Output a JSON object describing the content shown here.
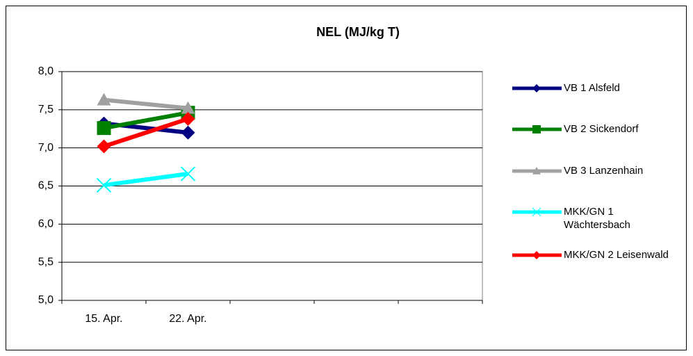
{
  "chart_data": {
    "type": "line",
    "title": "NEL (MJ/kg T)",
    "categories": [
      "15. Apr.",
      "22. Apr.",
      null,
      null,
      null
    ],
    "ylim": [
      5,
      8
    ],
    "yticks": [
      {
        "value": 5,
        "label": "5,0"
      },
      {
        "value": 5.5,
        "label": "5,5"
      },
      {
        "value": 6,
        "label": "6,0"
      },
      {
        "value": 6.5,
        "label": "6,5"
      },
      {
        "value": 7,
        "label": "7,0"
      },
      {
        "value": 7.5,
        "label": "7,5"
      },
      {
        "value": 8,
        "label": "8,0"
      }
    ],
    "grid": true,
    "legend": "right",
    "series": [
      {
        "name": "VB 1 Alsfeld",
        "color": "#000080",
        "marker": "diamond",
        "values": [
          7.32,
          7.2,
          null,
          null,
          null
        ]
      },
      {
        "name": "VB 2 Sickendorf",
        "color": "#008000",
        "marker": "square",
        "values": [
          7.26,
          7.46,
          null,
          null,
          null
        ]
      },
      {
        "name": "VB 3 Lanzenhain",
        "color": "#a0a0a0",
        "marker": "triangle",
        "values": [
          7.63,
          7.52,
          null,
          null,
          null
        ]
      },
      {
        "name": "MKK/GN 1 Wächtersbach",
        "color": "#00ffff",
        "marker": "x",
        "values": [
          6.51,
          6.66,
          null,
          null,
          null
        ]
      },
      {
        "name": "MKK/GN 2 Leisenwald",
        "color": "#ff0000",
        "marker": "diamond",
        "values": [
          7.02,
          7.38,
          null,
          null,
          null
        ]
      }
    ]
  }
}
